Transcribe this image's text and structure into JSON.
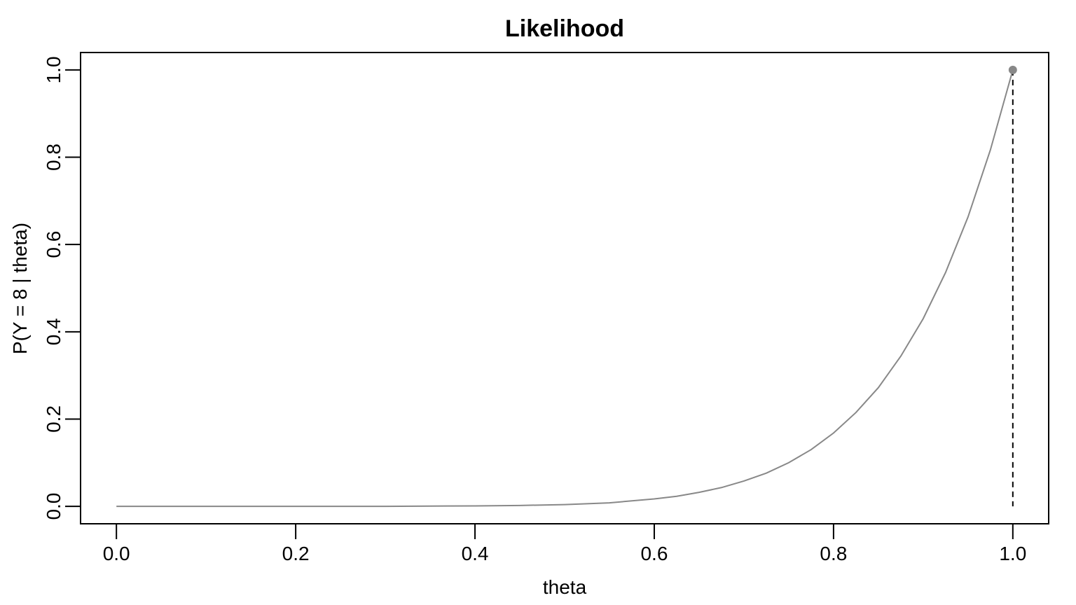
{
  "chart_data": {
    "type": "line",
    "title": "Likelihood",
    "x_label": "theta",
    "y_label": "P(Y = 8 | theta)",
    "x": [
      0,
      0.1,
      0.2,
      0.3,
      0.4,
      0.45,
      0.5,
      0.55,
      0.6,
      0.625,
      0.65,
      0.675,
      0.7,
      0.725,
      0.75,
      0.775,
      0.8,
      0.825,
      0.85,
      0.875,
      0.9,
      0.925,
      0.95,
      0.975,
      1.0
    ],
    "series": [
      {
        "color": "#888888",
        "values": [
          0,
          0,
          0,
          0,
          0.001,
          0.002,
          0.004,
          0.008,
          0.017,
          0.023,
          0.032,
          0.043,
          0.058,
          0.076,
          0.1,
          0.13,
          0.168,
          0.215,
          0.272,
          0.344,
          0.43,
          0.536,
          0.663,
          0.817,
          1.0
        ]
      }
    ],
    "max_point": {
      "x": 1.0,
      "y": 1.0,
      "color": "#888888"
    },
    "xlim": [
      -0.04,
      1.04
    ],
    "ylim": [
      -0.04,
      1.04
    ],
    "xticks": [
      {
        "value": 0,
        "label": "0.0"
      },
      0.2,
      0.4,
      0.6,
      0.8,
      {
        "value": 1,
        "label": "1.0"
      }
    ],
    "yticks": [
      {
        "value": 0,
        "label": "0.0"
      },
      0.2,
      0.4,
      0.6,
      0.8,
      {
        "value": 1,
        "label": "1.0"
      }
    ],
    "grid": false
  }
}
